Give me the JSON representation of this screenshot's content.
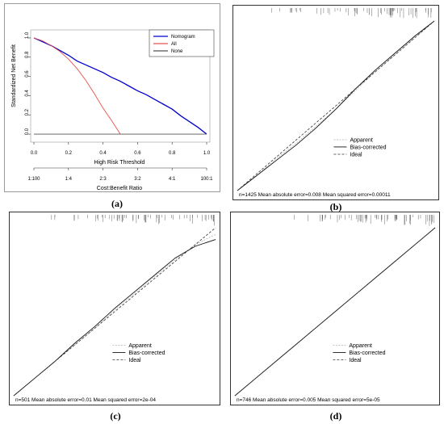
{
  "chart_data": [
    {
      "panel": "(a)",
      "type": "line",
      "ylabel": "Standardized Net Benefit",
      "xlabel": "High Risk Threshold",
      "xlabel2": "Cost:Benefit Ratio",
      "xlim": [
        0,
        1
      ],
      "ylim": [
        -0.05,
        1.05
      ],
      "xticks": [
        "0.0",
        "0.2",
        "0.4",
        "0.6",
        "0.8",
        "1.0"
      ],
      "yticks": [
        "0.0",
        "0.2",
        "0.4",
        "0.6",
        "0.8",
        "1.0"
      ],
      "ratio_ticks": [
        "1:100",
        "1:4",
        "2:3",
        "3:2",
        "4:1",
        "100:1"
      ],
      "legend": [
        {
          "label": "Nomogram",
          "color": "#0000cc"
        },
        {
          "label": "All",
          "color": "#e8524f"
        },
        {
          "label": "None",
          "color": "#555555"
        }
      ],
      "legend_position": "top-right",
      "series": [
        {
          "name": "Nomogram",
          "color": "#0000cc",
          "x": [
            0.0,
            0.05,
            0.1,
            0.15,
            0.2,
            0.25,
            0.3,
            0.35,
            0.4,
            0.45,
            0.5,
            0.55,
            0.6,
            0.65,
            0.7,
            0.75,
            0.8,
            0.85,
            0.9,
            0.95,
            1.0
          ],
          "y": [
            1.0,
            0.96,
            0.92,
            0.87,
            0.82,
            0.76,
            0.72,
            0.68,
            0.64,
            0.59,
            0.55,
            0.5,
            0.45,
            0.41,
            0.36,
            0.31,
            0.26,
            0.19,
            0.13,
            0.07,
            0.0
          ]
        },
        {
          "name": "All",
          "color": "#e8524f",
          "x": [
            0.0,
            0.05,
            0.1,
            0.15,
            0.2,
            0.25,
            0.3,
            0.35,
            0.4,
            0.45,
            0.5
          ],
          "y": [
            1.0,
            0.97,
            0.92,
            0.86,
            0.78,
            0.68,
            0.56,
            0.42,
            0.27,
            0.14,
            0.0
          ]
        },
        {
          "name": "None",
          "color": "#555555",
          "x": [
            0.0,
            1.0
          ],
          "y": [
            0.0,
            0.0
          ]
        }
      ]
    },
    {
      "panel": "(b)",
      "type": "line",
      "legend": [
        "Apparent",
        "Bias-corrected",
        "Ideal"
      ],
      "legend_position": "right",
      "stats": "n=1425   Mean absolute error=0.008   Mean squared error=0.00011",
      "series": [
        {
          "name": "Apparent",
          "x": [
            0.0,
            0.1,
            0.2,
            0.3,
            0.4,
            0.5,
            0.6,
            0.7,
            0.8,
            0.9,
            1.0
          ],
          "y": [
            0.0,
            0.09,
            0.19,
            0.28,
            0.38,
            0.48,
            0.59,
            0.7,
            0.8,
            0.9,
            1.0
          ]
        },
        {
          "name": "Bias-corrected",
          "x": [
            0.0,
            0.1,
            0.2,
            0.3,
            0.4,
            0.5,
            0.6,
            0.7,
            0.8,
            0.9,
            1.0
          ],
          "y": [
            0.0,
            0.09,
            0.18,
            0.27,
            0.37,
            0.48,
            0.6,
            0.71,
            0.81,
            0.91,
            1.0
          ]
        },
        {
          "name": "Ideal",
          "x": [
            0,
            1
          ],
          "y": [
            0,
            1
          ]
        }
      ]
    },
    {
      "panel": "(c)",
      "type": "line",
      "legend": [
        "Apparent",
        "Bias-corrected",
        "Ideal"
      ],
      "legend_position": "right",
      "stats": "n=501   Mean absolute error=0.01   Mean squared error=2e-04",
      "series": [
        {
          "name": "Apparent",
          "x": [
            0.0,
            0.1,
            0.2,
            0.3,
            0.4,
            0.5,
            0.6,
            0.7,
            0.8,
            0.9,
            1.0
          ],
          "y": [
            0.0,
            0.1,
            0.2,
            0.3,
            0.4,
            0.51,
            0.61,
            0.71,
            0.81,
            0.9,
            0.96
          ]
        },
        {
          "name": "Bias-corrected",
          "x": [
            0.0,
            0.1,
            0.2,
            0.3,
            0.4,
            0.5,
            0.6,
            0.7,
            0.8,
            0.9,
            1.0
          ],
          "y": [
            0.0,
            0.1,
            0.2,
            0.31,
            0.41,
            0.52,
            0.62,
            0.72,
            0.82,
            0.89,
            0.93
          ]
        },
        {
          "name": "Ideal",
          "x": [
            0,
            1
          ],
          "y": [
            0,
            1
          ]
        }
      ]
    },
    {
      "panel": "(d)",
      "type": "line",
      "legend": [
        "Apparent",
        "Bias-corrected",
        "Ideal"
      ],
      "legend_position": "right",
      "stats": "n=746   Mean absolute error=0.005   Mean squared error=5e-05",
      "series": [
        {
          "name": "Apparent",
          "x": [
            0.0,
            0.1,
            0.2,
            0.3,
            0.4,
            0.5,
            0.6,
            0.7,
            0.8,
            0.9,
            1.0
          ],
          "y": [
            0.0,
            0.1,
            0.2,
            0.3,
            0.4,
            0.5,
            0.6,
            0.7,
            0.8,
            0.9,
            1.0
          ]
        },
        {
          "name": "Bias-corrected",
          "x": [
            0.0,
            0.1,
            0.2,
            0.3,
            0.4,
            0.5,
            0.6,
            0.7,
            0.8,
            0.9,
            1.0
          ],
          "y": [
            0.0,
            0.1,
            0.2,
            0.3,
            0.4,
            0.5,
            0.6,
            0.7,
            0.8,
            0.9,
            1.0
          ]
        },
        {
          "name": "Ideal",
          "x": [
            0,
            1
          ],
          "y": [
            0,
            1
          ]
        }
      ]
    }
  ]
}
